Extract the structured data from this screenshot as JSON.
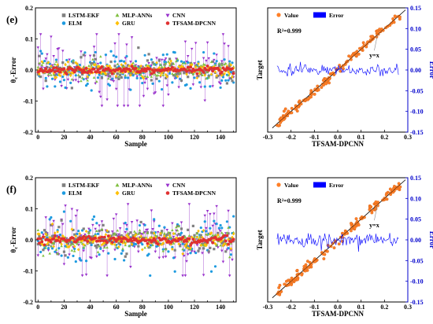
{
  "colors": {
    "lstm_ekf": "#808080",
    "elm": "#1e9be0",
    "mlp_anns": "#80c040",
    "gru": "#ffc000",
    "cnn": "#9933cc",
    "tfsam_dpcnn": "#e03030",
    "value": "#ff7f27",
    "error": "#0000ff",
    "reference": "#000000"
  },
  "chart_data": [
    {
      "id": "e-left",
      "panel_label": "(e)",
      "type": "scatter",
      "xlabel": "Sample",
      "ylabel": "θ_c-Error",
      "ylabel_main": "θ",
      "ylabel_sub": "c",
      "ylabel_rest": "-Error",
      "xlim": [
        -2,
        152
      ],
      "ylim": [
        -0.2,
        0.2
      ],
      "xticks": [
        0,
        10,
        20,
        30,
        40,
        50,
        60,
        70,
        80,
        90,
        100,
        110,
        120,
        130,
        140,
        150
      ],
      "xtick_labels": [
        "0",
        "",
        "20",
        "",
        "40",
        "",
        "60",
        "",
        "80",
        "",
        "100",
        "",
        "120",
        "",
        "140",
        ""
      ],
      "yticks": [
        -0.2,
        -0.1,
        0.0,
        0.1,
        0.2
      ],
      "ytick_labels": [
        "-0.2",
        "-0.1",
        "0.0",
        "0.1",
        "0.2"
      ],
      "legend": [
        {
          "name": "LSTM-EKF",
          "marker": "square",
          "color_key": "lstm_ekf"
        },
        {
          "name": "MLP-ANNs",
          "marker": "triangle-up",
          "color_key": "mlp_anns"
        },
        {
          "name": "CNN",
          "marker": "triangle-down",
          "color_key": "cnn"
        },
        {
          "name": "ELM",
          "marker": "circle",
          "color_key": "elm"
        },
        {
          "name": "GRU",
          "marker": "diamond",
          "color_key": "gru"
        },
        {
          "name": "TFSAM-DPCNN",
          "marker": "circle",
          "color_key": "tfsam_dpcnn"
        }
      ],
      "series_spread": {
        "lstm_ekf": 0.018,
        "mlp_anns": 0.015,
        "cnn": 0.05,
        "elm": 0.03,
        "gru": 0.012,
        "tfsam_dpcnn": 0.005
      },
      "seed": 7,
      "n_samples": 151
    },
    {
      "id": "e-right",
      "type": "scatter",
      "xlabel": "TFSAM-DPCNN",
      "ylabel": "Target",
      "y2label": "Error",
      "xlim": [
        -0.3,
        0.3
      ],
      "ylim": [
        -0.3,
        0.3
      ],
      "y2lim": [
        -0.15,
        0.15
      ],
      "xticks": [
        -0.3,
        -0.2,
        -0.1,
        0.0,
        0.1,
        0.2,
        0.3
      ],
      "xtick_labels": [
        "-0.3",
        "-0.2",
        "-0.1",
        "0.0",
        "0.1",
        "0.2",
        "0.3"
      ],
      "y2ticks": [
        -0.15,
        -0.1,
        -0.05,
        0.0,
        0.05,
        0.1,
        0.15
      ],
      "y2tick_labels": [
        "-0.15",
        "-0.10",
        "-0.05",
        "0.00",
        "0.05",
        "0.10",
        "0.15"
      ],
      "legend": [
        {
          "name": "Value",
          "marker": "circle",
          "color_key": "value"
        },
        {
          "name": "Error",
          "marker": "rect",
          "color_key": "error"
        }
      ],
      "annotations": {
        "r2": "R²=0.999",
        "ref_line": "y=x"
      },
      "range": [
        -0.26,
        0.27
      ],
      "noise": 0.01,
      "error_amp": 0.006,
      "seed": 11,
      "n_points": 151
    },
    {
      "id": "f-left",
      "panel_label": "(f)",
      "type": "scatter",
      "xlabel": "Sample",
      "ylabel": "θ_c-Error",
      "ylabel_main": "θ",
      "ylabel_sub": "c",
      "ylabel_rest": "-Error",
      "xlim": [
        -2,
        152
      ],
      "ylim": [
        -0.2,
        0.2
      ],
      "xticks": [
        0,
        10,
        20,
        30,
        40,
        50,
        60,
        70,
        80,
        90,
        100,
        110,
        120,
        130,
        140,
        150
      ],
      "xtick_labels": [
        "0",
        "",
        "20",
        "",
        "40",
        "",
        "60",
        "",
        "80",
        "",
        "100",
        "",
        "120",
        "",
        "140",
        ""
      ],
      "yticks": [
        -0.2,
        -0.1,
        0.0,
        0.1,
        0.2
      ],
      "ytick_labels": [
        "-0.2",
        "-0.1",
        "0.0",
        "0.1",
        "0.2"
      ],
      "legend": [
        {
          "name": "LSTM-EKF",
          "marker": "square",
          "color_key": "lstm_ekf"
        },
        {
          "name": "MLP-ANNs",
          "marker": "triangle-up",
          "color_key": "mlp_anns"
        },
        {
          "name": "CNN",
          "marker": "triangle-down",
          "color_key": "cnn"
        },
        {
          "name": "ELM",
          "marker": "circle",
          "color_key": "elm"
        },
        {
          "name": "GRU",
          "marker": "diamond",
          "color_key": "gru"
        },
        {
          "name": "TFSAM-DPCNN",
          "marker": "circle",
          "color_key": "tfsam_dpcnn"
        }
      ],
      "series_spread": {
        "lstm_ekf": 0.02,
        "mlp_anns": 0.02,
        "cnn": 0.045,
        "elm": 0.035,
        "gru": 0.015,
        "tfsam_dpcnn": 0.006
      },
      "seed": 23,
      "n_samples": 151
    },
    {
      "id": "f-right",
      "type": "scatter",
      "xlabel": "TFSAM-DPCNN",
      "ylabel": "Target",
      "y2label": "Error",
      "xlim": [
        -0.3,
        0.3
      ],
      "ylim": [
        -0.3,
        0.3
      ],
      "y2lim": [
        -0.15,
        0.15
      ],
      "xticks": [
        -0.3,
        -0.2,
        -0.1,
        0.0,
        0.1,
        0.2,
        0.3
      ],
      "xtick_labels": [
        "-0.3",
        "-0.2",
        "-0.1",
        "0.0",
        "0.1",
        "0.2",
        "0.3"
      ],
      "y2ticks": [
        -0.15,
        -0.1,
        -0.05,
        0.0,
        0.05,
        0.1,
        0.15
      ],
      "y2tick_labels": [
        "-0.15",
        "-0.10",
        "-0.05",
        "0.00",
        "0.05",
        "0.10",
        "0.15"
      ],
      "legend": [
        {
          "name": "Value",
          "marker": "circle",
          "color_key": "value"
        },
        {
          "name": "Error",
          "marker": "rect",
          "color_key": "error"
        }
      ],
      "annotations": {
        "r2": "R²=0.999",
        "ref_line": "y=x"
      },
      "range": [
        -0.26,
        0.27
      ],
      "noise": 0.012,
      "error_amp": 0.007,
      "seed": 31,
      "n_points": 151
    }
  ]
}
